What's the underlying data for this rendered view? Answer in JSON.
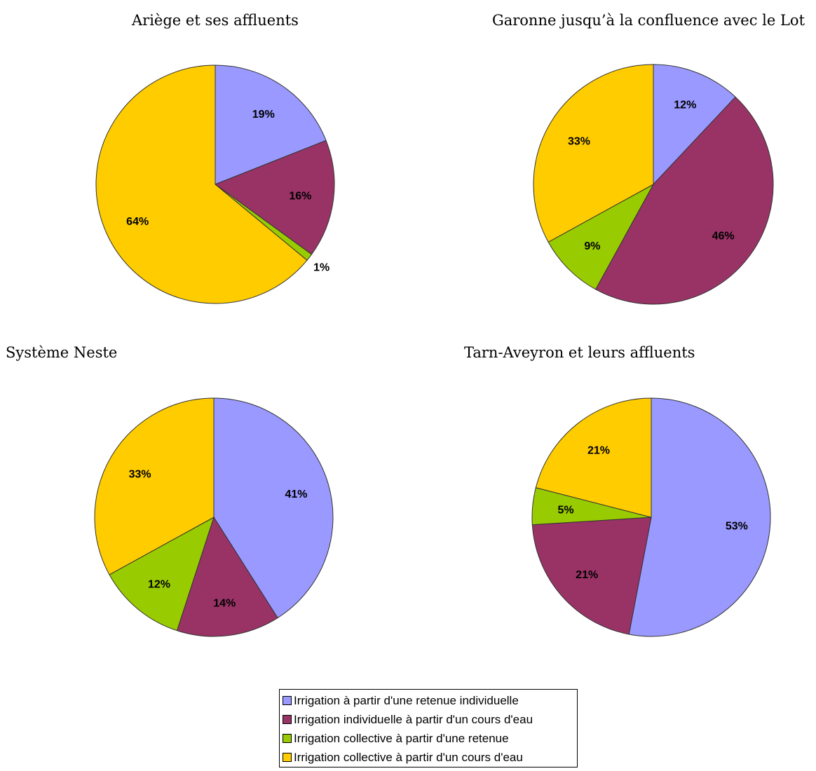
{
  "chart_data": [
    {
      "type": "pie",
      "title": "Ariège et ses affluents",
      "categories": [
        "Irrigation à partir d'une retenue individuelle",
        "Irrigation individuelle à partir d'un cours d'eau",
        "Irrigation collective à partir d'une retenue",
        "Irrigation collective à partir d'un cours d'eau"
      ],
      "values": [
        19,
        16,
        1,
        64
      ],
      "labels": [
        "19%",
        "16%",
        "1%",
        "64%"
      ]
    },
    {
      "type": "pie",
      "title": "Garonne jusqu’à la confluence avec le Lot",
      "categories": [
        "Irrigation à partir d'une retenue individuelle",
        "Irrigation individuelle à partir d'un cours d'eau",
        "Irrigation collective à partir d'une retenue",
        "Irrigation collective à partir d'un cours d'eau"
      ],
      "values": [
        12,
        46,
        9,
        33
      ],
      "labels": [
        "12%",
        "46%",
        "9%",
        "33%"
      ]
    },
    {
      "type": "pie",
      "title": "Système Neste",
      "categories": [
        "Irrigation à partir d'une retenue individuelle",
        "Irrigation individuelle à partir d'un cours d'eau",
        "Irrigation collective à partir d'une retenue",
        "Irrigation collective à partir d'un cours d'eau"
      ],
      "values": [
        41,
        14,
        12,
        33
      ],
      "labels": [
        "41%",
        "14%",
        "12%",
        "33%"
      ]
    },
    {
      "type": "pie",
      "title": "Tarn-Aveyron et leurs affluents",
      "categories": [
        "Irrigation à partir d'une retenue individuelle",
        "Irrigation individuelle à partir d'un cours d'eau",
        "Irrigation collective à partir d'une retenue",
        "Irrigation collective à partir d'un cours d'eau"
      ],
      "values": [
        53,
        21,
        5,
        21
      ],
      "labels": [
        "53%",
        "21%",
        "5%",
        "21%"
      ]
    }
  ],
  "colors": [
    "#9999ff",
    "#993366",
    "#99cc00",
    "#ffcc00"
  ],
  "legend": {
    "placement": "bottom-center",
    "items": [
      "Irrigation à partir d'une retenue individuelle",
      "Irrigation individuelle à partir d'un cours d'eau",
      "Irrigation collective à partir d'une retenue",
      "Irrigation collective à partir d'un cours d'eau"
    ]
  }
}
